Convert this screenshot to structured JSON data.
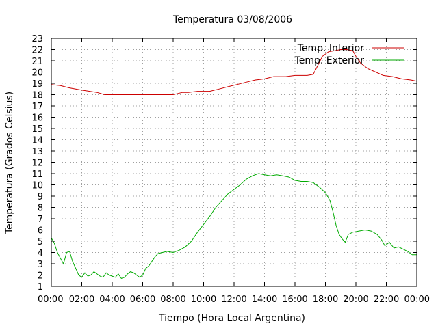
{
  "chart_data": {
    "type": "line",
    "title": "Temperatura 03/08/2006",
    "xlabel": "Tiempo (Hora Local Argentina)",
    "ylabel": "Temperatura (Grados Celsius)",
    "xlim": [
      0,
      24
    ],
    "ylim": [
      1,
      23
    ],
    "x_tick_labels": [
      "00:00",
      "02:00",
      "04:00",
      "06:00",
      "08:00",
      "10:00",
      "12:00",
      "14:00",
      "16:00",
      "18:00",
      "20:00",
      "22:00",
      "00:00"
    ],
    "y_tick_labels": [
      "1",
      "2",
      "3",
      "4",
      "5",
      "6",
      "7",
      "8",
      "9",
      "10",
      "11",
      "12",
      "13",
      "14",
      "15",
      "16",
      "17",
      "18",
      "19",
      "20",
      "21",
      "22",
      "23"
    ],
    "grid": true,
    "grid_style": "dotted",
    "legend_position": "top-right",
    "series": [
      {
        "name": "Temp. Interior",
        "color": "#cc0000",
        "points": [
          [
            0,
            18.9
          ],
          [
            0.6,
            18.8
          ],
          [
            1.2,
            18.6
          ],
          [
            2.0,
            18.4
          ],
          [
            3.0,
            18.2
          ],
          [
            3.5,
            18.0
          ],
          [
            5,
            18.0
          ],
          [
            6,
            18.0
          ],
          [
            7,
            18.0
          ],
          [
            8,
            18.0
          ],
          [
            8.6,
            18.2
          ],
          [
            9,
            18.2
          ],
          [
            9.6,
            18.3
          ],
          [
            10.4,
            18.3
          ],
          [
            11,
            18.5
          ],
          [
            11.6,
            18.7
          ],
          [
            12.2,
            18.9
          ],
          [
            12.8,
            19.1
          ],
          [
            13.4,
            19.3
          ],
          [
            14,
            19.4
          ],
          [
            14.6,
            19.6
          ],
          [
            15.4,
            19.6
          ],
          [
            16.0,
            19.7
          ],
          [
            16.8,
            19.7
          ],
          [
            17.2,
            19.8
          ],
          [
            17.5,
            20.6
          ],
          [
            17.8,
            21.4
          ],
          [
            18.2,
            21.8
          ],
          [
            18.6,
            21.9
          ],
          [
            19.0,
            22.0
          ],
          [
            19.4,
            22.0
          ],
          [
            19.8,
            21.9
          ],
          [
            20.0,
            21.4
          ],
          [
            20.3,
            20.8
          ],
          [
            20.8,
            20.3
          ],
          [
            21.3,
            20.0
          ],
          [
            21.8,
            19.7
          ],
          [
            22.4,
            19.6
          ],
          [
            23.0,
            19.4
          ],
          [
            23.6,
            19.3
          ],
          [
            24,
            19.2
          ]
        ]
      },
      {
        "name": "Temp. Exterior",
        "color": "#00aa00",
        "points": [
          [
            0,
            5.3
          ],
          [
            0.2,
            4.8
          ],
          [
            0.4,
            4.0
          ],
          [
            0.6,
            3.5
          ],
          [
            0.8,
            3.0
          ],
          [
            1.0,
            4.0
          ],
          [
            1.2,
            4.1
          ],
          [
            1.4,
            3.2
          ],
          [
            1.6,
            2.6
          ],
          [
            1.8,
            2.0
          ],
          [
            2.0,
            1.8
          ],
          [
            2.2,
            2.2
          ],
          [
            2.4,
            1.9
          ],
          [
            2.6,
            2.0
          ],
          [
            2.8,
            2.3
          ],
          [
            3.0,
            2.1
          ],
          [
            3.2,
            1.9
          ],
          [
            3.4,
            1.8
          ],
          [
            3.6,
            2.2
          ],
          [
            3.8,
            2.0
          ],
          [
            4.0,
            1.9
          ],
          [
            4.2,
            1.8
          ],
          [
            4.4,
            2.1
          ],
          [
            4.6,
            1.7
          ],
          [
            4.8,
            1.8
          ],
          [
            5.0,
            2.1
          ],
          [
            5.2,
            2.3
          ],
          [
            5.4,
            2.2
          ],
          [
            5.6,
            2.0
          ],
          [
            5.8,
            1.8
          ],
          [
            6.0,
            2.0
          ],
          [
            6.2,
            2.6
          ],
          [
            6.4,
            2.8
          ],
          [
            6.6,
            3.2
          ],
          [
            6.8,
            3.6
          ],
          [
            7.0,
            3.9
          ],
          [
            7.3,
            4.0
          ],
          [
            7.6,
            4.1
          ],
          [
            8.0,
            4.0
          ],
          [
            8.4,
            4.2
          ],
          [
            8.8,
            4.5
          ],
          [
            9.2,
            5.0
          ],
          [
            9.6,
            5.8
          ],
          [
            10.0,
            6.5
          ],
          [
            10.4,
            7.2
          ],
          [
            10.8,
            8.0
          ],
          [
            11.2,
            8.6
          ],
          [
            11.6,
            9.2
          ],
          [
            12.0,
            9.6
          ],
          [
            12.4,
            10.0
          ],
          [
            12.8,
            10.5
          ],
          [
            13.2,
            10.8
          ],
          [
            13.6,
            11.0
          ],
          [
            14.0,
            10.9
          ],
          [
            14.4,
            10.8
          ],
          [
            14.8,
            10.9
          ],
          [
            15.2,
            10.8
          ],
          [
            15.6,
            10.7
          ],
          [
            16.0,
            10.4
          ],
          [
            16.4,
            10.3
          ],
          [
            16.8,
            10.3
          ],
          [
            17.2,
            10.2
          ],
          [
            17.6,
            9.8
          ],
          [
            18.0,
            9.3
          ],
          [
            18.3,
            8.6
          ],
          [
            18.5,
            7.6
          ],
          [
            18.7,
            6.4
          ],
          [
            18.9,
            5.6
          ],
          [
            19.1,
            5.2
          ],
          [
            19.3,
            4.9
          ],
          [
            19.5,
            5.6
          ],
          [
            19.8,
            5.8
          ],
          [
            20.2,
            5.9
          ],
          [
            20.6,
            6.0
          ],
          [
            21.0,
            5.9
          ],
          [
            21.4,
            5.6
          ],
          [
            21.7,
            5.1
          ],
          [
            21.9,
            4.6
          ],
          [
            22.2,
            4.9
          ],
          [
            22.5,
            4.4
          ],
          [
            22.8,
            4.5
          ],
          [
            23.1,
            4.3
          ],
          [
            23.4,
            4.1
          ],
          [
            23.7,
            3.8
          ],
          [
            24,
            3.8
          ]
        ]
      }
    ]
  }
}
